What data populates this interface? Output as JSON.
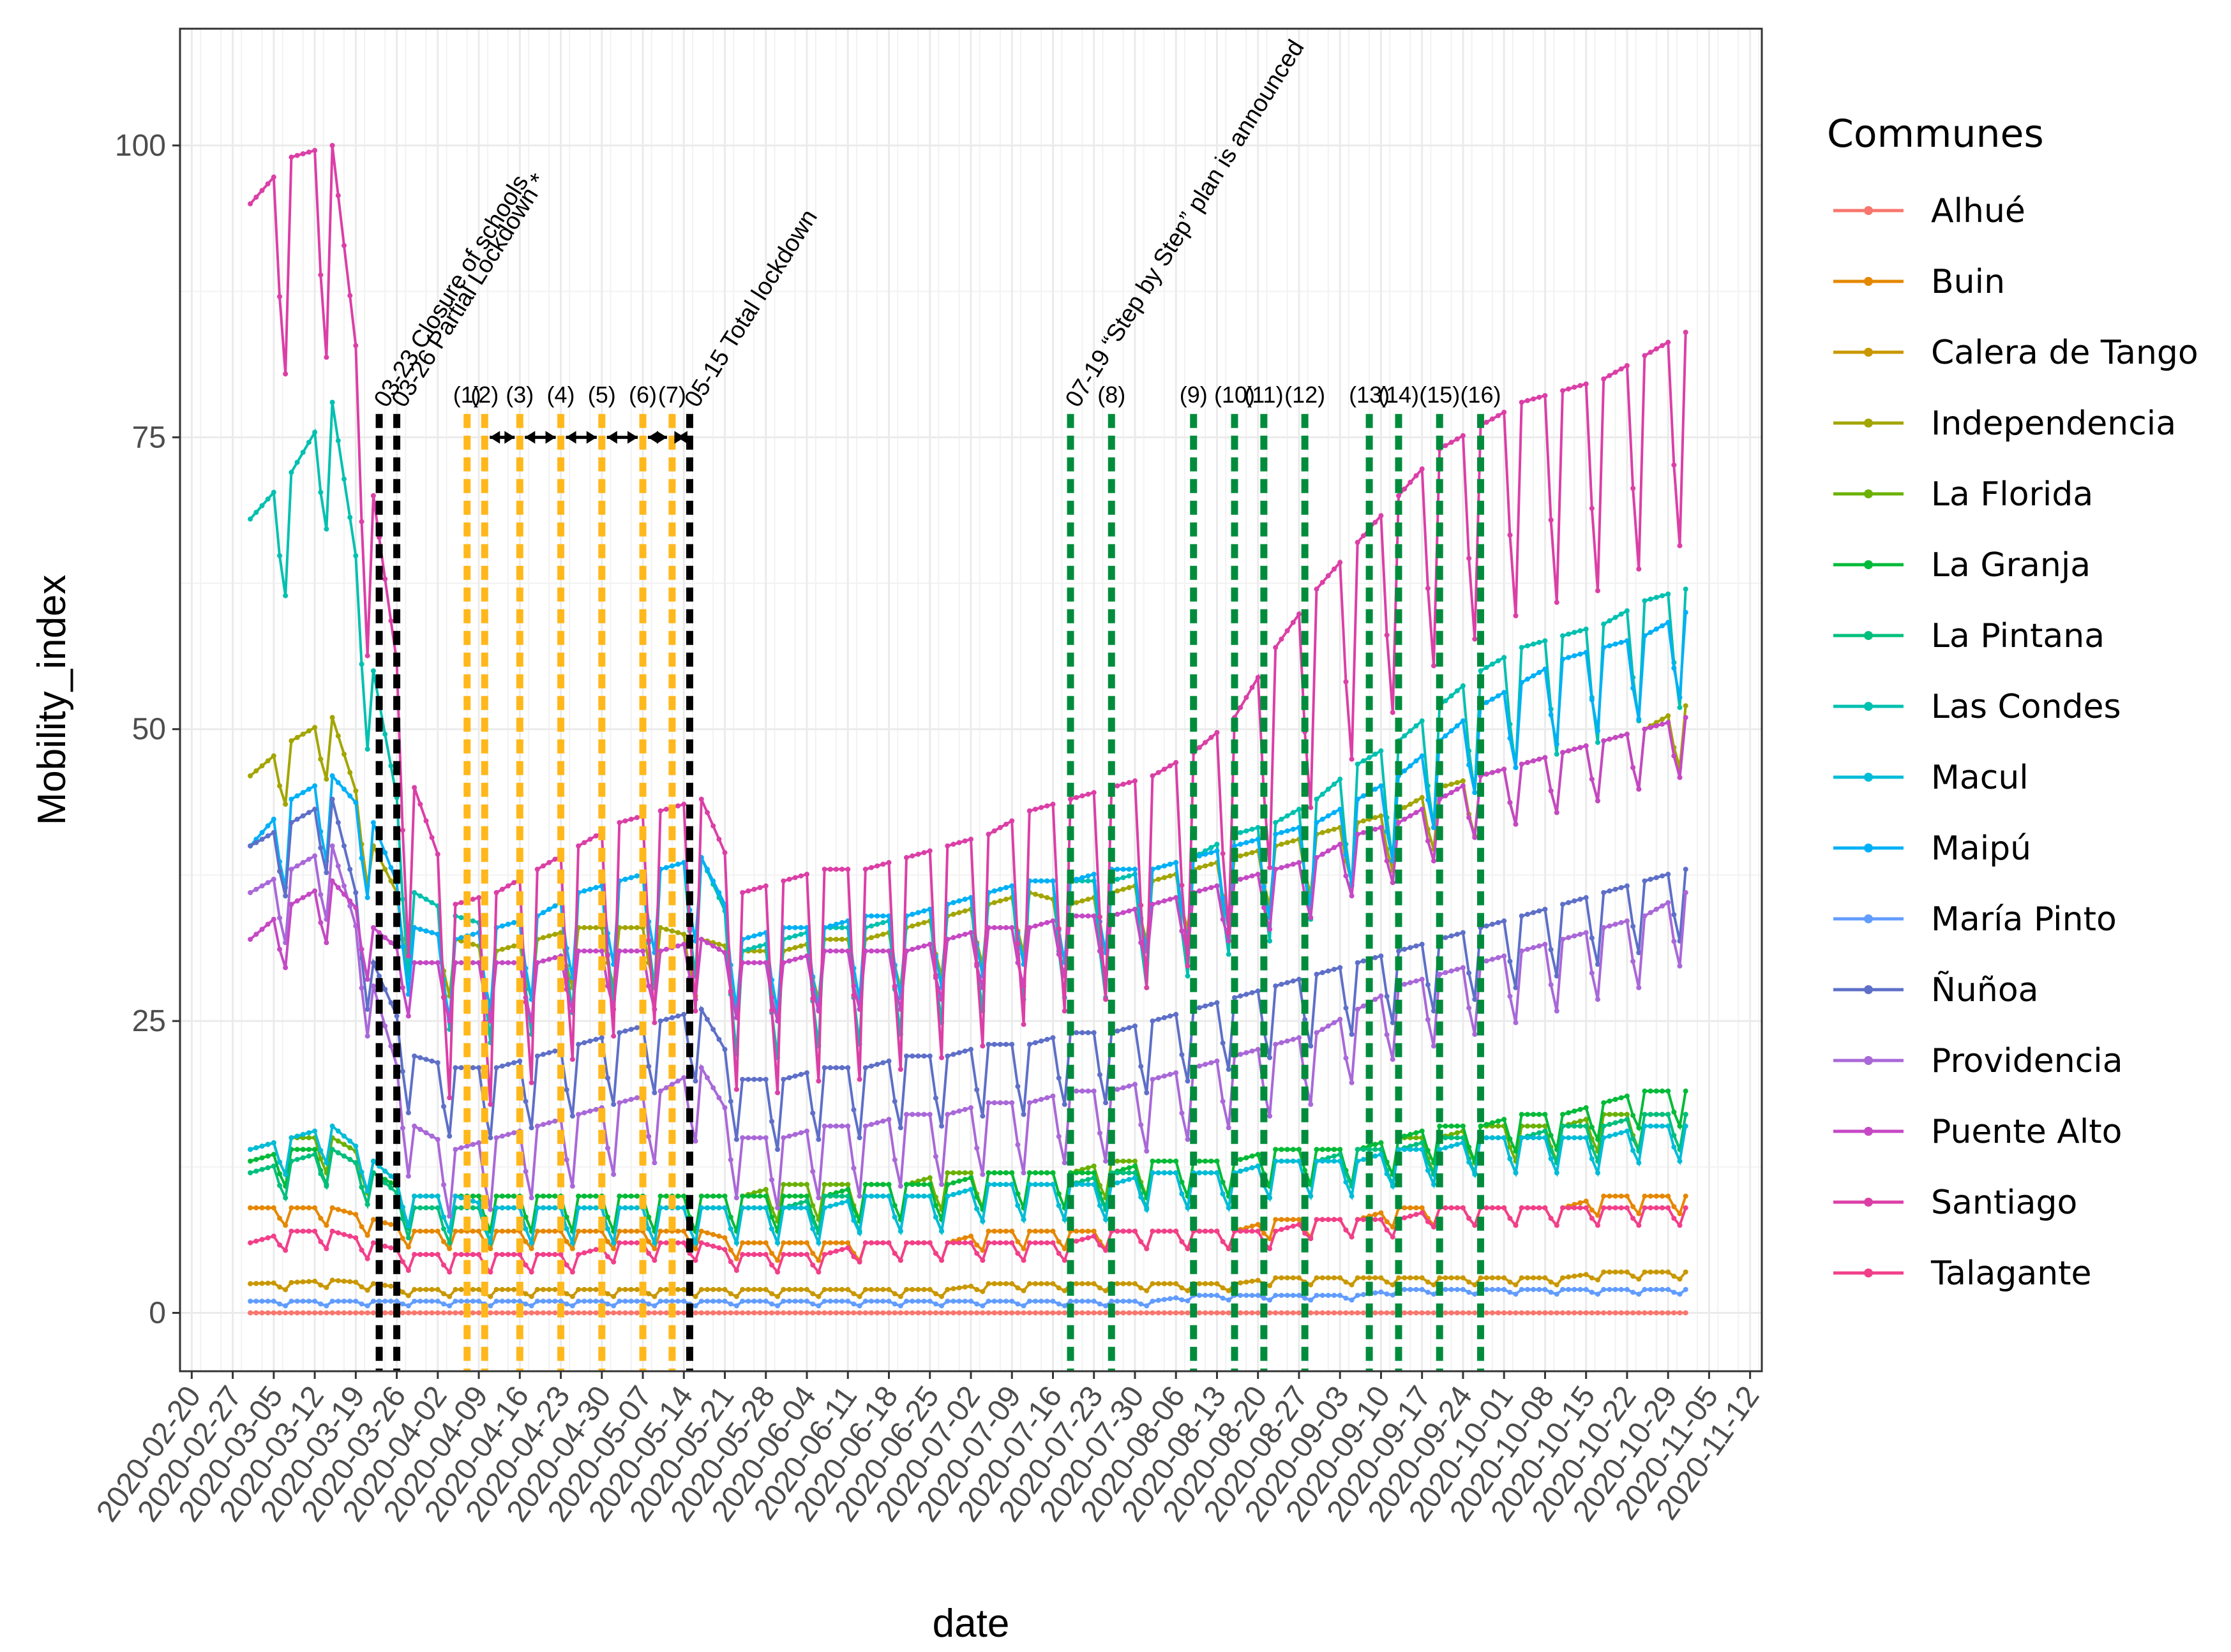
{
  "chart_data": {
    "type": "line",
    "title": "",
    "xlabel": "date",
    "ylabel": "Mobility_index",
    "ylim": [
      -5,
      110
    ],
    "xlim": [
      "2020-02-18",
      "2020-11-14"
    ],
    "grid": true,
    "y_ticks": [
      0,
      25,
      50,
      75,
      100
    ],
    "x_ticks": [
      "2020-02-20",
      "2020-02-27",
      "2020-03-05",
      "2020-03-12",
      "2020-03-19",
      "2020-03-26",
      "2020-04-02",
      "2020-04-09",
      "2020-04-16",
      "2020-04-23",
      "2020-04-30",
      "2020-05-07",
      "2020-05-14",
      "2020-05-21",
      "2020-05-28",
      "2020-06-04",
      "2020-06-11",
      "2020-06-18",
      "2020-06-25",
      "2020-07-02",
      "2020-07-09",
      "2020-07-16",
      "2020-07-23",
      "2020-07-30",
      "2020-08-06",
      "2020-08-13",
      "2020-08-20",
      "2020-08-27",
      "2020-09-03",
      "2020-09-10",
      "2020-09-17",
      "2020-09-24",
      "2020-10-01",
      "2020-10-08",
      "2020-10-15",
      "2020-10-22",
      "2020-10-29",
      "2020-11-05",
      "2020-11-12"
    ],
    "legend_title": "Communes",
    "legend_position": "right",
    "date_start": "2020-03-01",
    "date_end": "2020-11-01",
    "series_note": "Daily mobility index per commune; values listed as weekly checkpoints (weekday, weekend) approximated from the plot.",
    "series": [
      {
        "name": "Alhué",
        "color": "#F8766D",
        "level": [
          0,
          0,
          0,
          0,
          0,
          0,
          0,
          0,
          0,
          0,
          0,
          0,
          0,
          0,
          0,
          0,
          0,
          0,
          0,
          0,
          0,
          0,
          0,
          0,
          0,
          0,
          0,
          0,
          0,
          0,
          0,
          0,
          0,
          0,
          0,
          0
        ],
        "amp": 0
      },
      {
        "name": "Buin",
        "color": "#E58700",
        "level": [
          9,
          9,
          9,
          8,
          7,
          7,
          7,
          7,
          7,
          7,
          7,
          7,
          6,
          6,
          6,
          6,
          6,
          6,
          7,
          7,
          7,
          7,
          7,
          7,
          7,
          8,
          8,
          8,
          9,
          9,
          9,
          9,
          9,
          10,
          10,
          10
        ],
        "amp": 1.5
      },
      {
        "name": "Calera de Tango",
        "color": "#C99800",
        "level": [
          2.5,
          2.6,
          2.8,
          2.5,
          2,
          2,
          2,
          2,
          2,
          2,
          2,
          2,
          2,
          2,
          2,
          2,
          2,
          2,
          2.5,
          2.5,
          2.5,
          2.5,
          2.5,
          2.5,
          2.5,
          3,
          3,
          3,
          3,
          3,
          3,
          3,
          3,
          3.5,
          3.5,
          3.5
        ],
        "amp": 0.6
      },
      {
        "name": "Independencia",
        "color": "#A3A500",
        "level": [
          46,
          49,
          51,
          40,
          33,
          32,
          31,
          32,
          33,
          33,
          33,
          32,
          31,
          31,
          32,
          32,
          33,
          34,
          35,
          36,
          35,
          36,
          37,
          38,
          39,
          40,
          41,
          42,
          43,
          45,
          46,
          47,
          48,
          49,
          50,
          52
        ],
        "amp": 5
      },
      {
        "name": "La Florida",
        "color": "#6BB100",
        "level": [
          14,
          15,
          15,
          13,
          10,
          10,
          10,
          10,
          10,
          10,
          10,
          10,
          10,
          11,
          11,
          11,
          11,
          12,
          12,
          12,
          12,
          13,
          13,
          13,
          13,
          14,
          14,
          14,
          15,
          15,
          16,
          16,
          16,
          17,
          17,
          17
        ],
        "amp": 3
      },
      {
        "name": "La Granja",
        "color": "#00BA38",
        "level": [
          13,
          14,
          14,
          12,
          10,
          10,
          10,
          10,
          10,
          10,
          10,
          10,
          10,
          10,
          10,
          11,
          11,
          11,
          12,
          12,
          12,
          12,
          13,
          13,
          13,
          14,
          14,
          14,
          15,
          16,
          16,
          17,
          17,
          18,
          19,
          19
        ],
        "amp": 3
      },
      {
        "name": "La Pintana",
        "color": "#00BF7D",
        "level": [
          12,
          13,
          14,
          12,
          9,
          9,
          9,
          9,
          9,
          9,
          9,
          9,
          9,
          9,
          10,
          10,
          10,
          10,
          11,
          11,
          11,
          12,
          12,
          12,
          12,
          13,
          13,
          14,
          14,
          15,
          15,
          15,
          16,
          16,
          17,
          17
        ],
        "amp": 3
      },
      {
        "name": "Las Condes",
        "color": "#00C0AF",
        "level": [
          68,
          72,
          78,
          55,
          36,
          34,
          33,
          34,
          36,
          37,
          38,
          39,
          31,
          32,
          33,
          33,
          34,
          35,
          36,
          37,
          37,
          37,
          38,
          39,
          41,
          42,
          44,
          47,
          49,
          52,
          55,
          57,
          58,
          59,
          61,
          62
        ],
        "amp": 10
      },
      {
        "name": "Macul",
        "color": "#00BCD8",
        "level": [
          14,
          15,
          16,
          13,
          10,
          10,
          9,
          9,
          9,
          9,
          9,
          9,
          9,
          9,
          9,
          10,
          10,
          10,
          11,
          11,
          11,
          11,
          12,
          12,
          12,
          13,
          13,
          13,
          14,
          14,
          15,
          15,
          15,
          15,
          16,
          16
        ],
        "amp": 3
      },
      {
        "name": "Maipú",
        "color": "#00B0F6",
        "level": [
          40,
          44,
          46,
          42,
          33,
          32,
          33,
          34,
          36,
          37,
          38,
          39,
          32,
          33,
          33,
          34,
          34,
          35,
          36,
          37,
          37,
          38,
          38,
          39,
          40,
          41,
          42,
          44,
          46,
          49,
          52,
          54,
          56,
          57,
          58,
          60
        ],
        "amp": 7
      },
      {
        "name": "María Pinto",
        "color": "#619CFF",
        "level": [
          1,
          1,
          1,
          1,
          1,
          1,
          1,
          1,
          1,
          1,
          1,
          1,
          1,
          1,
          1,
          1,
          1,
          1,
          1,
          1,
          1,
          1,
          1,
          1.5,
          1.5,
          1.5,
          1.5,
          1.5,
          2,
          2,
          2,
          2,
          2,
          2,
          2,
          2
        ],
        "amp": 0.4
      },
      {
        "name": "Ñuñoa",
        "color": "#5E6FC8",
        "level": [
          40,
          42,
          44,
          30,
          22,
          21,
          21,
          22,
          23,
          24,
          25,
          26,
          20,
          20,
          21,
          21,
          22,
          22,
          23,
          23,
          24,
          24,
          25,
          26,
          27,
          28,
          29,
          30,
          31,
          32,
          33,
          34,
          35,
          36,
          37,
          38
        ],
        "amp": 6
      },
      {
        "name": "Providencia",
        "color": "#A968D8",
        "level": [
          36,
          38,
          40,
          28,
          16,
          14,
          15,
          16,
          17,
          18,
          19,
          21,
          15,
          15,
          16,
          16,
          17,
          17,
          18,
          18,
          19,
          19,
          20,
          21,
          22,
          23,
          24,
          26,
          28,
          29,
          30,
          31,
          32,
          33,
          34,
          36
        ],
        "amp": 6
      },
      {
        "name": "Puente Alto",
        "color": "#C548C4",
        "level": [
          32,
          35,
          37,
          33,
          30,
          30,
          30,
          30,
          31,
          31,
          31,
          32,
          30,
          30,
          31,
          31,
          31,
          32,
          33,
          33,
          34,
          34,
          35,
          36,
          37,
          38,
          39,
          41,
          42,
          44,
          46,
          47,
          48,
          49,
          50,
          51
        ],
        "amp": 5
      },
      {
        "name": "Santiago",
        "color": "#DB3FA6",
        "level": [
          95,
          99,
          100,
          70,
          45,
          35,
          36,
          38,
          40,
          42,
          43,
          44,
          36,
          37,
          38,
          38,
          39,
          40,
          41,
          43,
          44,
          45,
          46,
          48,
          51,
          57,
          62,
          66,
          70,
          74,
          76,
          78,
          79,
          80,
          82,
          84
        ],
        "amp": 18
      },
      {
        "name": "Talagante",
        "color": "#F23F8A",
        "level": [
          6,
          7,
          7,
          6,
          5,
          5,
          5,
          5,
          5,
          6,
          6,
          6,
          5,
          5,
          5,
          6,
          6,
          6,
          6,
          6,
          6,
          7,
          7,
          7,
          7,
          7,
          8,
          8,
          8,
          9,
          9,
          9,
          9,
          9,
          9,
          9
        ],
        "amp": 1.5
      }
    ],
    "events": [
      {
        "date": "2020-03-23",
        "label": "03-23 Closure of schools",
        "color": "#000000"
      },
      {
        "date": "2020-03-26",
        "label": "03-26 Partial Lockdown *",
        "color": "#000000"
      },
      {
        "date": "2020-05-15",
        "label": "05-15 Total lockdown",
        "color": "#000000"
      },
      {
        "date": "2020-07-19",
        "label": "07-19 “Step by Step” plan is announced",
        "color": "#000000"
      }
    ],
    "phase_lines": [
      {
        "date": "2020-04-07",
        "label": "(1)",
        "color": "#FFB81C"
      },
      {
        "date": "2020-04-10",
        "label": "(2)",
        "color": "#FFB81C"
      },
      {
        "date": "2020-04-16",
        "label": "(3)",
        "color": "#FFB81C"
      },
      {
        "date": "2020-04-23",
        "label": "(4)",
        "color": "#FFB81C"
      },
      {
        "date": "2020-04-30",
        "label": "(5)",
        "color": "#FFB81C"
      },
      {
        "date": "2020-05-07",
        "label": "(6)",
        "color": "#FFB81C"
      },
      {
        "date": "2020-05-12",
        "label": "(7)",
        "color": "#FFB81C"
      },
      {
        "date": "2020-07-26",
        "label": "(8)",
        "color": "#008C3C"
      },
      {
        "date": "2020-08-09",
        "label": "(9)",
        "color": "#008C3C"
      },
      {
        "date": "2020-08-16",
        "label": "(10)",
        "color": "#008C3C"
      },
      {
        "date": "2020-08-21",
        "label": "(11)",
        "color": "#008C3C"
      },
      {
        "date": "2020-08-28",
        "label": "(12)",
        "color": "#008C3C"
      },
      {
        "date": "2020-09-08",
        "label": "(13)",
        "color": "#008C3C"
      },
      {
        "date": "2020-09-13",
        "label": "(14)",
        "color": "#008C3C"
      },
      {
        "date": "2020-09-20",
        "label": "(15)",
        "color": "#008C3C"
      },
      {
        "date": "2020-09-27",
        "label": "(16)",
        "color": "#008C3C"
      }
    ]
  }
}
